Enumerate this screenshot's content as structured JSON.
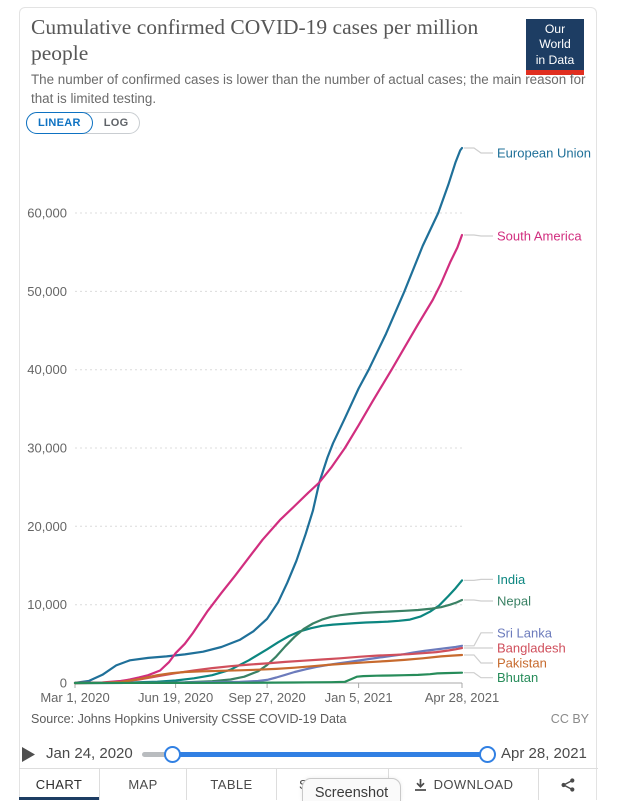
{
  "header": {
    "title": "Cumulative confirmed COVID-19 cases per million people",
    "subtitle": "The number of confirmed cases is lower than the number of actual cases; the main reason for that is limited testing.",
    "logo": {
      "line1": "Our World",
      "line2": "in Data",
      "navy": "#1d3d63",
      "red": "#e02f20"
    }
  },
  "controls": {
    "linear_label": "LINEAR",
    "log_label": "LOG",
    "selected_scale": "LINEAR"
  },
  "chart_data": {
    "type": "line",
    "title": "Cumulative confirmed COVID-19 cases per million people",
    "xlabel": "",
    "ylabel": "",
    "grid": "dashed-horizontal",
    "legend_position": "right-entity-labels",
    "y_axis": {
      "min": 0,
      "max": 68500,
      "ticks": [
        0,
        10000,
        20000,
        30000,
        40000,
        50000,
        60000
      ],
      "tick_labels": [
        "0",
        "10,000",
        "20,000",
        "30,000",
        "40,000",
        "50,000",
        "60,000"
      ]
    },
    "x_axis": {
      "start": "Mar 1, 2020",
      "end": "Apr 28, 2021",
      "total_days": 423,
      "tick_days": [
        0,
        110,
        210,
        310,
        423
      ],
      "tick_labels": [
        "Mar 1, 2020",
        "Jun 19, 2020",
        "Sep 27, 2020",
        "Jan 5, 2021",
        "Apr 28, 2021"
      ]
    },
    "series": [
      {
        "name": "European Union",
        "color": "#1f7099",
        "label_dy": 5,
        "points": [
          [
            0,
            30
          ],
          [
            15,
            250
          ],
          [
            30,
            1050
          ],
          [
            45,
            2250
          ],
          [
            60,
            2900
          ],
          [
            80,
            3200
          ],
          [
            100,
            3400
          ],
          [
            120,
            3650
          ],
          [
            140,
            4000
          ],
          [
            160,
            4600
          ],
          [
            180,
            5500
          ],
          [
            195,
            6600
          ],
          [
            210,
            8200
          ],
          [
            222,
            10300
          ],
          [
            232,
            12800
          ],
          [
            242,
            15600
          ],
          [
            252,
            19000
          ],
          [
            260,
            22000
          ],
          [
            267,
            25600
          ],
          [
            276,
            28800
          ],
          [
            282,
            30600
          ],
          [
            295,
            33800
          ],
          [
            310,
            37600
          ],
          [
            321,
            40000
          ],
          [
            340,
            44600
          ],
          [
            360,
            50000
          ],
          [
            380,
            55800
          ],
          [
            397,
            60000
          ],
          [
            408,
            63600
          ],
          [
            416,
            66500
          ],
          [
            421,
            68000
          ],
          [
            423,
            68300
          ]
        ]
      },
      {
        "name": "South America",
        "color": "#d12e7f",
        "label_dy": 1,
        "points": [
          [
            0,
            5
          ],
          [
            30,
            60
          ],
          [
            50,
            250
          ],
          [
            60,
            450
          ],
          [
            70,
            700
          ],
          [
            80,
            1000
          ],
          [
            93,
            1600
          ],
          [
            103,
            2700
          ],
          [
            110,
            3800
          ],
          [
            120,
            5000
          ],
          [
            129,
            6400
          ],
          [
            145,
            9200
          ],
          [
            160,
            11500
          ],
          [
            175,
            13700
          ],
          [
            190,
            16000
          ],
          [
            205,
            18300
          ],
          [
            224,
            20800
          ],
          [
            240,
            22600
          ],
          [
            255,
            24300
          ],
          [
            267,
            25600
          ],
          [
            280,
            27500
          ],
          [
            295,
            30000
          ],
          [
            310,
            32900
          ],
          [
            325,
            35900
          ],
          [
            346,
            40000
          ],
          [
            360,
            42800
          ],
          [
            375,
            45800
          ],
          [
            391,
            48900
          ],
          [
            400,
            51000
          ],
          [
            410,
            53700
          ],
          [
            418,
            55600
          ],
          [
            423,
            57200
          ]
        ]
      },
      {
        "name": "India",
        "color": "#0c8680",
        "label_dy": -1,
        "points": [
          [
            0,
            0
          ],
          [
            60,
            60
          ],
          [
            90,
            170
          ],
          [
            110,
            320
          ],
          [
            130,
            600
          ],
          [
            150,
            1000
          ],
          [
            170,
            1700
          ],
          [
            190,
            2900
          ],
          [
            210,
            4300
          ],
          [
            222,
            5200
          ],
          [
            234,
            6000
          ],
          [
            246,
            6600
          ],
          [
            258,
            7000
          ],
          [
            270,
            7300
          ],
          [
            282,
            7450
          ],
          [
            294,
            7550
          ],
          [
            306,
            7650
          ],
          [
            318,
            7720
          ],
          [
            330,
            7780
          ],
          [
            342,
            7840
          ],
          [
            354,
            7940
          ],
          [
            366,
            8100
          ],
          [
            378,
            8500
          ],
          [
            388,
            9100
          ],
          [
            398,
            9900
          ],
          [
            408,
            11100
          ],
          [
            416,
            12100
          ],
          [
            423,
            13100
          ]
        ]
      },
      {
        "name": "Nepal",
        "color": "#3a8164",
        "label_dy": 1,
        "points": [
          [
            0,
            0
          ],
          [
            90,
            15
          ],
          [
            120,
            80
          ],
          [
            150,
            230
          ],
          [
            170,
            450
          ],
          [
            185,
            800
          ],
          [
            200,
            1500
          ],
          [
            210,
            2300
          ],
          [
            220,
            3400
          ],
          [
            230,
            4700
          ],
          [
            240,
            5900
          ],
          [
            250,
            6900
          ],
          [
            260,
            7600
          ],
          [
            270,
            8100
          ],
          [
            280,
            8450
          ],
          [
            290,
            8650
          ],
          [
            300,
            8800
          ],
          [
            315,
            8950
          ],
          [
            330,
            9050
          ],
          [
            345,
            9130
          ],
          [
            360,
            9220
          ],
          [
            375,
            9320
          ],
          [
            390,
            9500
          ],
          [
            400,
            9680
          ],
          [
            410,
            10000
          ],
          [
            417,
            10280
          ],
          [
            423,
            10600
          ]
        ]
      },
      {
        "name": "Sri Lanka",
        "color": "#6c7bbc",
        "label_dy": -13,
        "points": [
          [
            0,
            0
          ],
          [
            90,
            30
          ],
          [
            120,
            70
          ],
          [
            150,
            110
          ],
          [
            180,
            150
          ],
          [
            200,
            250
          ],
          [
            210,
            400
          ],
          [
            220,
            700
          ],
          [
            230,
            1050
          ],
          [
            240,
            1400
          ],
          [
            252,
            1750
          ],
          [
            264,
            2050
          ],
          [
            276,
            2300
          ],
          [
            288,
            2500
          ],
          [
            300,
            2700
          ],
          [
            315,
            2950
          ],
          [
            330,
            3200
          ],
          [
            345,
            3450
          ],
          [
            358,
            3650
          ],
          [
            370,
            3900
          ],
          [
            382,
            4100
          ],
          [
            394,
            4280
          ],
          [
            406,
            4450
          ],
          [
            416,
            4600
          ],
          [
            423,
            4750
          ]
        ]
      },
      {
        "name": "Bangladesh",
        "color": "#d04f5c",
        "label_dy": 0,
        "points": [
          [
            0,
            0
          ],
          [
            30,
            20
          ],
          [
            50,
            150
          ],
          [
            70,
            450
          ],
          [
            90,
            850
          ],
          [
            110,
            1250
          ],
          [
            130,
            1600
          ],
          [
            150,
            1900
          ],
          [
            170,
            2150
          ],
          [
            190,
            2350
          ],
          [
            210,
            2500
          ],
          [
            230,
            2700
          ],
          [
            250,
            2850
          ],
          [
            270,
            3000
          ],
          [
            290,
            3150
          ],
          [
            310,
            3350
          ],
          [
            330,
            3500
          ],
          [
            350,
            3600
          ],
          [
            365,
            3680
          ],
          [
            380,
            3800
          ],
          [
            395,
            3950
          ],
          [
            408,
            4150
          ],
          [
            416,
            4300
          ],
          [
            423,
            4470
          ]
        ]
      },
      {
        "name": "Pakistan",
        "color": "#c76a2e",
        "label_dy": 8,
        "points": [
          [
            0,
            0
          ],
          [
            30,
            15
          ],
          [
            50,
            120
          ],
          [
            70,
            500
          ],
          [
            90,
            1000
          ],
          [
            105,
            1250
          ],
          [
            120,
            1400
          ],
          [
            140,
            1500
          ],
          [
            160,
            1560
          ],
          [
            180,
            1620
          ],
          [
            200,
            1700
          ],
          [
            220,
            1800
          ],
          [
            240,
            1950
          ],
          [
            260,
            2150
          ],
          [
            280,
            2350
          ],
          [
            300,
            2500
          ],
          [
            320,
            2650
          ],
          [
            340,
            2800
          ],
          [
            360,
            2950
          ],
          [
            380,
            3150
          ],
          [
            400,
            3400
          ],
          [
            412,
            3500
          ],
          [
            423,
            3580
          ]
        ]
      },
      {
        "name": "Bhutan",
        "color": "#278c5a",
        "label_dy": 5,
        "points": [
          [
            0,
            0
          ],
          [
            120,
            15
          ],
          [
            180,
            30
          ],
          [
            240,
            60
          ],
          [
            280,
            100
          ],
          [
            295,
            150
          ],
          [
            300,
            400
          ],
          [
            308,
            800
          ],
          [
            315,
            880
          ],
          [
            330,
            930
          ],
          [
            345,
            960
          ],
          [
            360,
            990
          ],
          [
            375,
            1040
          ],
          [
            388,
            1120
          ],
          [
            396,
            1230
          ],
          [
            405,
            1270
          ],
          [
            423,
            1320
          ]
        ]
      }
    ]
  },
  "footer": {
    "source_label": "Source:",
    "source_text": "Johns Hopkins University CSSE COVID-19 Data",
    "license": "CC BY"
  },
  "timeline": {
    "start_date": "Jan 24, 2020",
    "end_date": "Apr 28, 2021"
  },
  "tabs": {
    "chart": "CHART",
    "map": "MAP",
    "table": "TABLE",
    "sources": "SOURCES",
    "download": "DOWNLOAD"
  },
  "overlay": {
    "label": "Screenshot"
  }
}
